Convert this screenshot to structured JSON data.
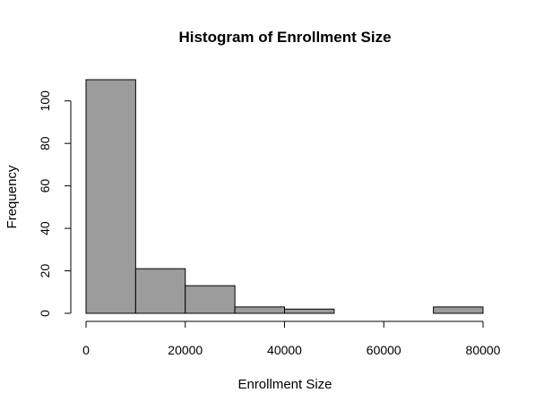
{
  "chart_data": {
    "type": "bar",
    "title": "Histogram of Enrollment Size",
    "xlabel": "Enrollment Size",
    "ylabel": "Frequency",
    "bins": [
      {
        "start": 0,
        "end": 10000,
        "count": 110
      },
      {
        "start": 10000,
        "end": 20000,
        "count": 21
      },
      {
        "start": 20000,
        "end": 30000,
        "count": 13
      },
      {
        "start": 30000,
        "end": 40000,
        "count": 3
      },
      {
        "start": 40000,
        "end": 50000,
        "count": 2
      },
      {
        "start": 50000,
        "end": 60000,
        "count": 0
      },
      {
        "start": 60000,
        "end": 70000,
        "count": 0
      },
      {
        "start": 70000,
        "end": 80000,
        "count": 3
      }
    ],
    "xlim": [
      0,
      80000
    ],
    "ylim": [
      0,
      110
    ],
    "x_ticks": [
      0,
      20000,
      40000,
      60000,
      80000
    ],
    "x_tick_labels": [
      "0",
      "20000",
      "40000",
      "60000",
      "80000"
    ],
    "y_ticks": [
      0,
      20,
      40,
      60,
      80,
      100
    ],
    "y_tick_labels": [
      "0",
      "20",
      "40",
      "60",
      "80",
      "100"
    ],
    "bar_color": "#9c9c9c",
    "grid": false,
    "legend": "none"
  }
}
